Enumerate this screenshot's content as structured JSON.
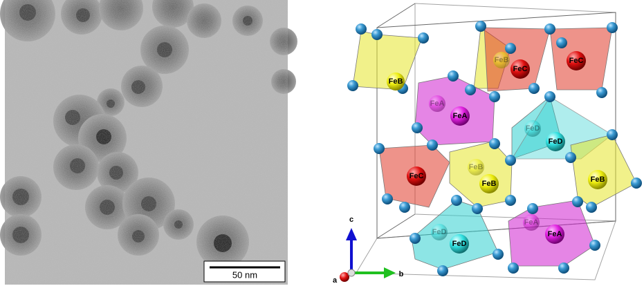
{
  "tem_image": {
    "scale_bar": "50 nm"
  },
  "structure": {
    "atoms": [
      {
        "label": "FeB"
      },
      {
        "label": "FeB"
      },
      {
        "label": "FeC"
      },
      {
        "label": "FeC"
      },
      {
        "label": "FeA"
      },
      {
        "label": "FeA"
      },
      {
        "label": "FeD"
      },
      {
        "label": "FeD"
      },
      {
        "label": "FeC"
      },
      {
        "label": "FeB"
      },
      {
        "label": "FeB"
      },
      {
        "label": "FeB"
      },
      {
        "label": "FeD"
      },
      {
        "label": "FeD"
      },
      {
        "label": "FeA"
      },
      {
        "label": "FeA"
      }
    ],
    "axes": {
      "c": "c",
      "a": "a",
      "b": "b"
    }
  }
}
